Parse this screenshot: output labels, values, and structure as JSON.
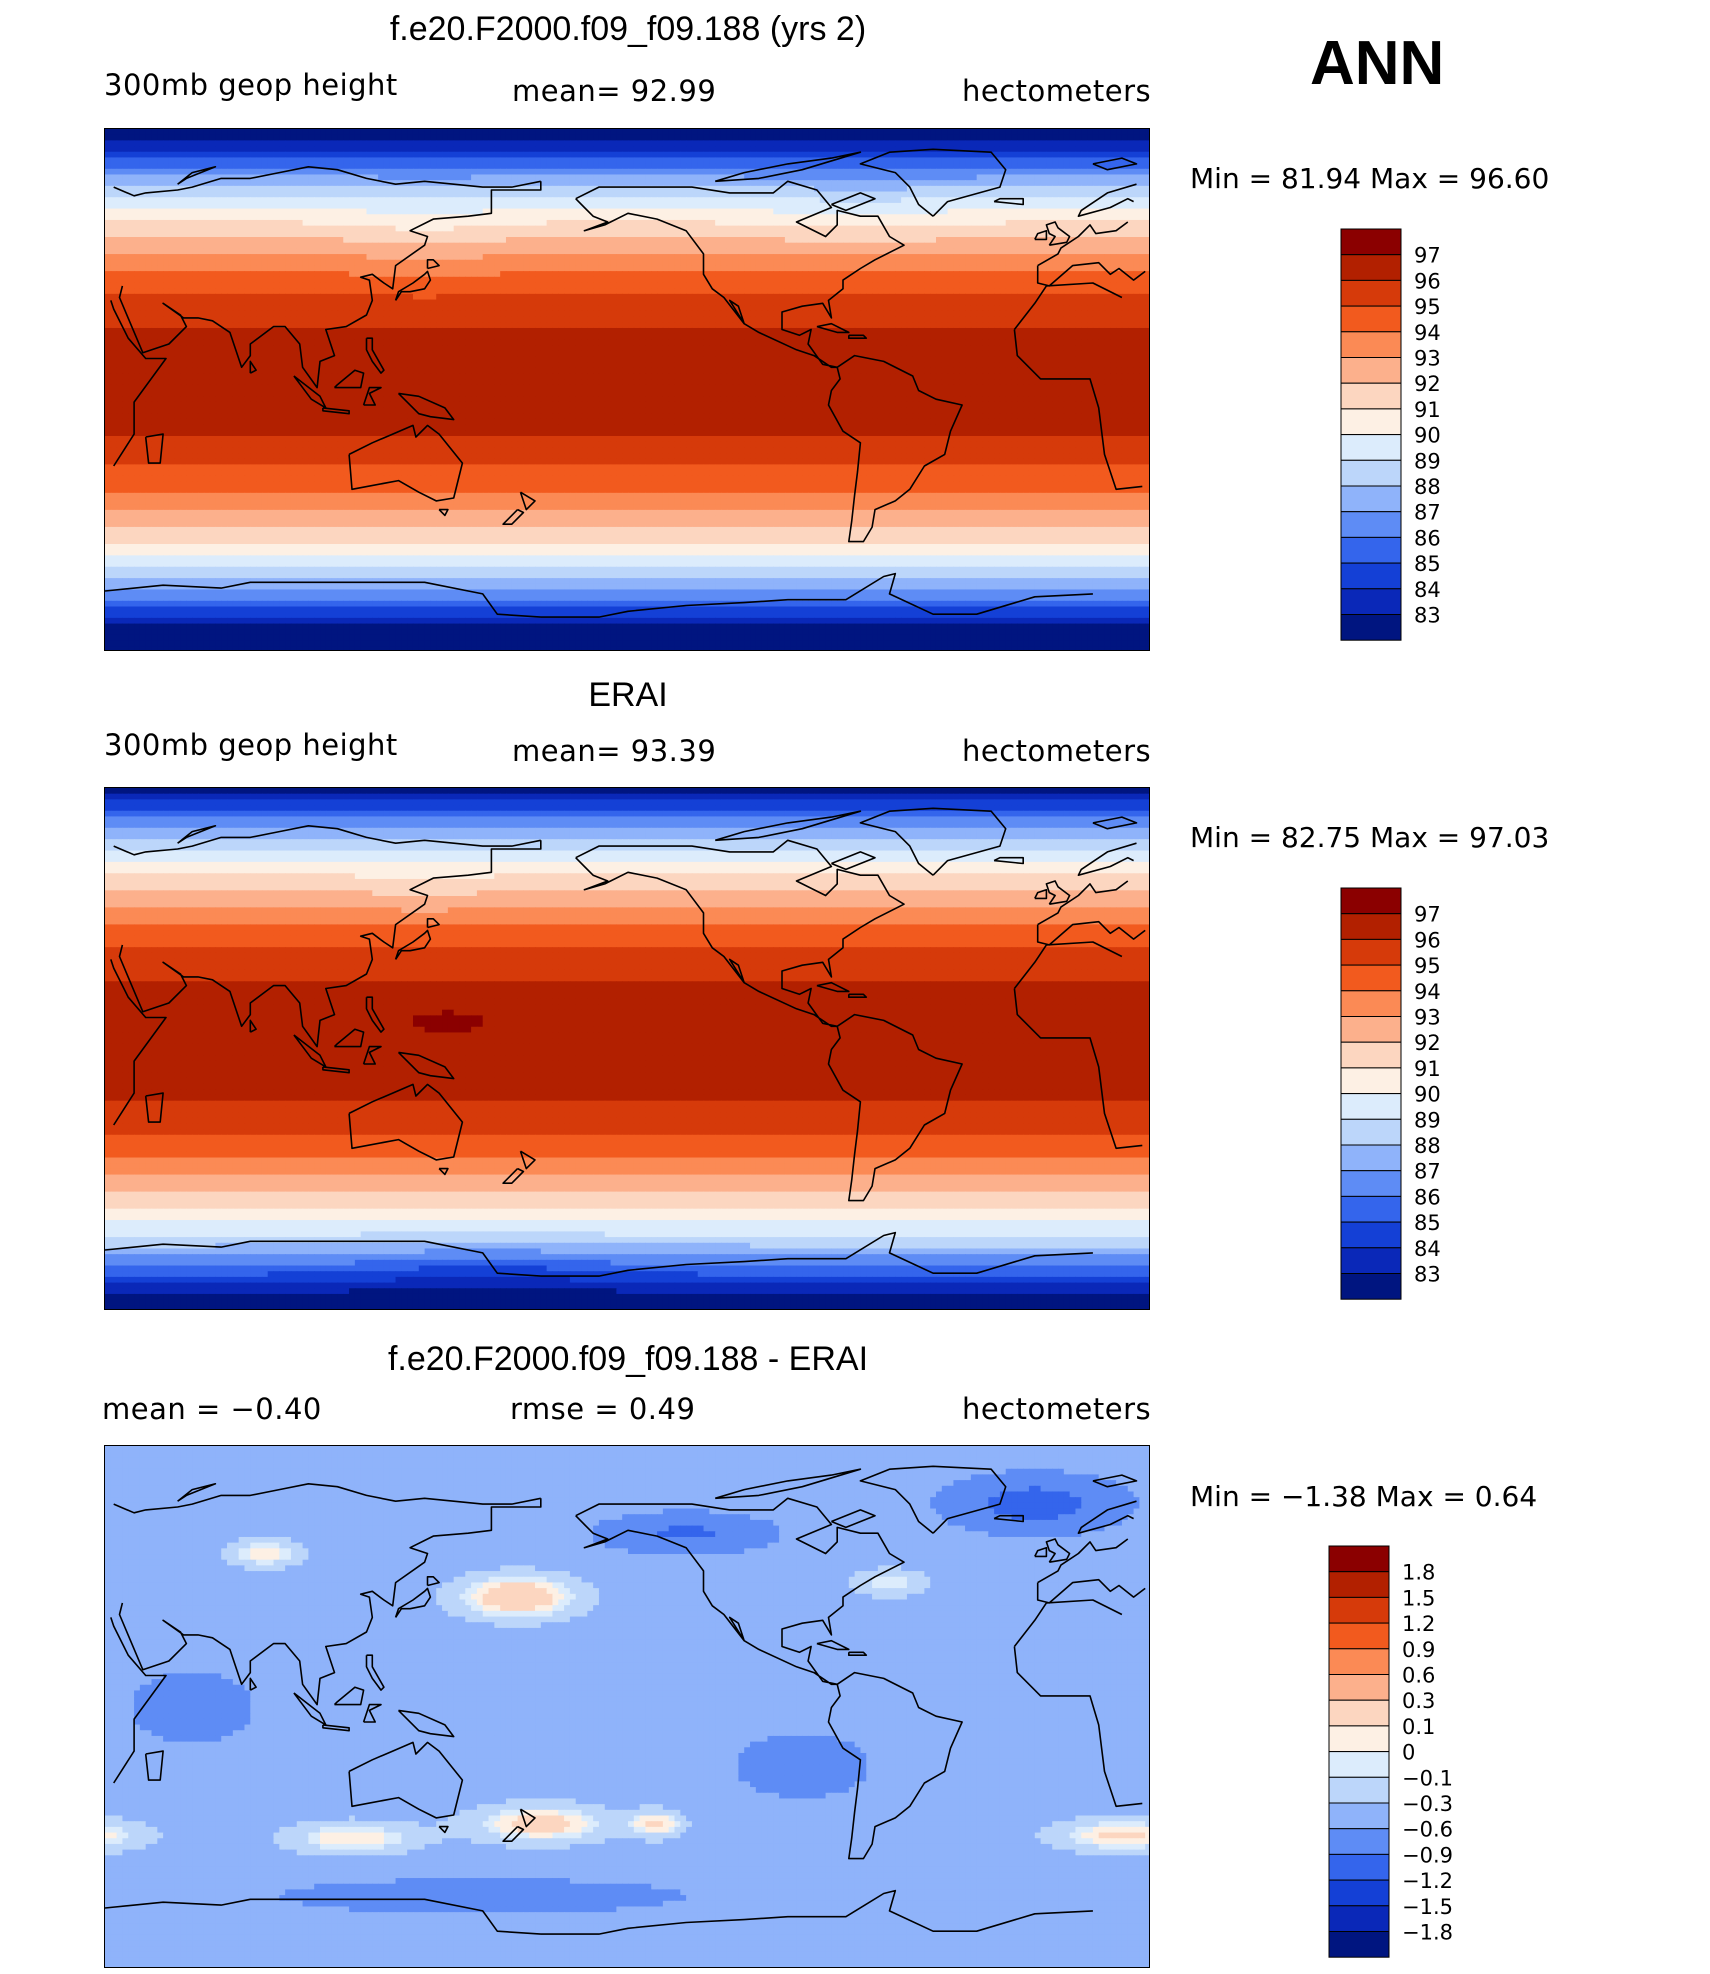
{
  "season": "ANN",
  "panels": [
    {
      "title": "f.e20.F2000.f09_f09.188 (yrs 2)",
      "left_label": "300mb  geop  height",
      "center_label": "mean=   92.99",
      "right_label": "hectometers",
      "minmax": "Min  =    81.94  Max  =    96.60",
      "colorbar": {
        "labels": [
          "97",
          "96",
          "95",
          "94",
          "93",
          "92",
          "91",
          "90",
          "89",
          "88",
          "87",
          "86",
          "85",
          "84",
          "83"
        ],
        "colors": [
          "#8b0000",
          "#b22000",
          "#d63a0a",
          "#f25a1e",
          "#fb8a55",
          "#fcb08c",
          "#fcd6c0",
          "#fdf0e4",
          "#dcecfc",
          "#bcd6fa",
          "#8fb3fa",
          "#5e8cf5",
          "#3465ec",
          "#1440d6",
          "#0a28b8",
          "#001580"
        ]
      },
      "field": {
        "type": "model",
        "mean": 92.99,
        "min": 81.94,
        "max": 96.6
      }
    },
    {
      "title": "ERAI",
      "left_label": "300mb  geop  height",
      "center_label": "mean=   93.39",
      "right_label": "hectometers",
      "minmax": "Min  =    82.75  Max  =    97.03",
      "colorbar": {
        "labels": [
          "97",
          "96",
          "95",
          "94",
          "93",
          "92",
          "91",
          "90",
          "89",
          "88",
          "87",
          "86",
          "85",
          "84",
          "83"
        ],
        "colors": [
          "#8b0000",
          "#b22000",
          "#d63a0a",
          "#f25a1e",
          "#fb8a55",
          "#fcb08c",
          "#fcd6c0",
          "#fdf0e4",
          "#dcecfc",
          "#bcd6fa",
          "#8fb3fa",
          "#5e8cf5",
          "#3465ec",
          "#1440d6",
          "#0a28b8",
          "#001580"
        ]
      },
      "field": {
        "type": "obs",
        "mean": 93.39,
        "min": 82.75,
        "max": 97.03
      }
    },
    {
      "title": "f.e20.F2000.f09_f09.188 - ERAI",
      "left_label": "mean  =    −0.40",
      "center_label": "rmse  =     0.49",
      "right_label": "hectometers",
      "minmax": "Min  =    −1.38  Max  =      0.64",
      "colorbar": {
        "labels": [
          "1.8",
          "1.5",
          "1.2",
          "0.9",
          "0.6",
          "0.3",
          "0.1",
          "0",
          "−0.1",
          "−0.3",
          "−0.6",
          "−0.9",
          "−1.2",
          "−1.5",
          "−1.8"
        ],
        "colors": [
          "#8b0000",
          "#b22000",
          "#d63a0a",
          "#f25a1e",
          "#fb8a55",
          "#fcb08c",
          "#fcd6c0",
          "#fdf0e4",
          "#dcecfc",
          "#bcd6fa",
          "#8fb3fa",
          "#5e8cf5",
          "#3465ec",
          "#1440d6",
          "#0a28b8",
          "#001580"
        ]
      },
      "field": {
        "type": "diff",
        "mean": -0.4,
        "rmse": 0.49,
        "min": -1.38,
        "max": 0.64
      }
    }
  ],
  "chart_data": [
    {
      "type": "heatmap",
      "title": "f.e20.F2000.f09_f09.188 (yrs 2)",
      "variable": "300mb geop height",
      "units": "hectometers",
      "mean": 92.99,
      "min": 81.94,
      "max": 96.6,
      "contour_levels": [
        83,
        84,
        85,
        86,
        87,
        88,
        89,
        90,
        91,
        92,
        93,
        94,
        95,
        96,
        97
      ]
    },
    {
      "type": "heatmap",
      "title": "ERAI",
      "variable": "300mb geop height",
      "units": "hectometers",
      "mean": 93.39,
      "min": 82.75,
      "max": 97.03,
      "contour_levels": [
        83,
        84,
        85,
        86,
        87,
        88,
        89,
        90,
        91,
        92,
        93,
        94,
        95,
        96,
        97
      ]
    },
    {
      "type": "heatmap",
      "title": "f.e20.F2000.f09_f09.188 - ERAI",
      "units": "hectometers",
      "mean": -0.4,
      "rmse": 0.49,
      "min": -1.38,
      "max": 0.64,
      "contour_levels": [
        -1.8,
        -1.5,
        -1.2,
        -0.9,
        -0.6,
        -0.3,
        -0.1,
        0,
        0.1,
        0.3,
        0.6,
        0.9,
        1.2,
        1.5,
        1.8
      ]
    }
  ]
}
